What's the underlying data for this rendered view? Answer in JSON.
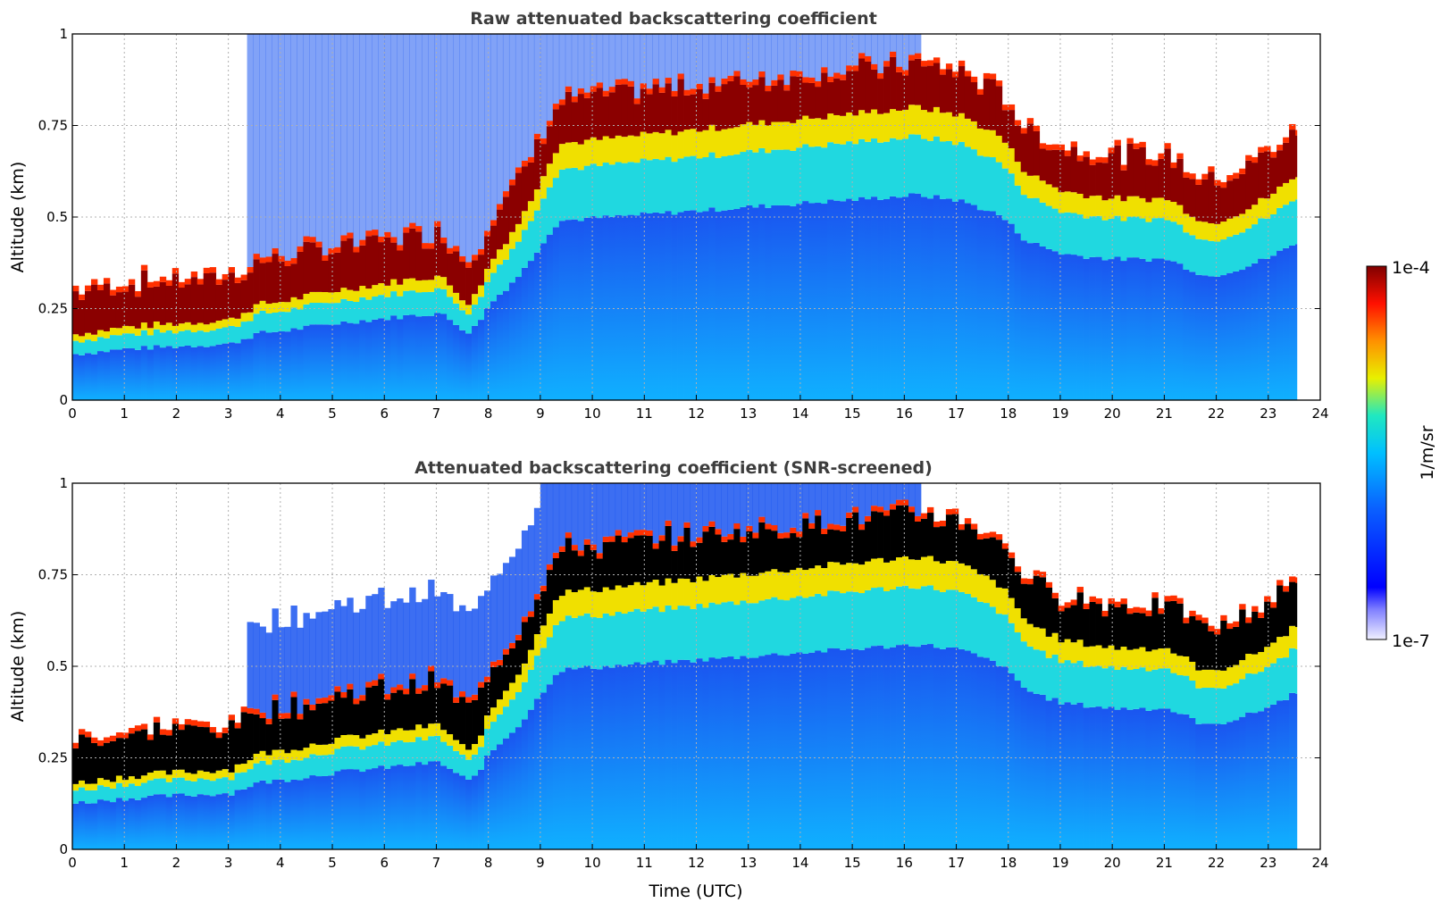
{
  "chart_data": [
    {
      "type": "heatmap",
      "title": "Raw attenuated backscattering coefficient",
      "xlabel": "",
      "ylabel": "Altitude (km)",
      "xlim": [
        0,
        24
      ],
      "ylim": [
        0,
        1
      ],
      "xticks": [
        "0",
        "1",
        "2",
        "3",
        "4",
        "5",
        "6",
        "7",
        "8",
        "9",
        "10",
        "11",
        "12",
        "13",
        "14",
        "15",
        "16",
        "17",
        "18",
        "19",
        "20",
        "21",
        "22",
        "23",
        "24"
      ],
      "yticks": [
        "0",
        "0.25",
        "0.5",
        "0.75",
        "1"
      ],
      "data_end_time": 23.55,
      "layer_base_km": [
        [
          0,
          0.18
        ],
        [
          1,
          0.2
        ],
        [
          2,
          0.21
        ],
        [
          3,
          0.22
        ],
        [
          3.5,
          0.26
        ],
        [
          4,
          0.27
        ],
        [
          5,
          0.3
        ],
        [
          6,
          0.32
        ],
        [
          7,
          0.34
        ],
        [
          7.6,
          0.26
        ],
        [
          8,
          0.38
        ],
        [
          8.6,
          0.5
        ],
        [
          9,
          0.62
        ],
        [
          9.3,
          0.7
        ],
        [
          16.2,
          0.8
        ],
        [
          17,
          0.78
        ],
        [
          17.8,
          0.72
        ],
        [
          18.3,
          0.62
        ],
        [
          19,
          0.57
        ],
        [
          20,
          0.55
        ],
        [
          21,
          0.55
        ],
        [
          21.8,
          0.48
        ],
        [
          22.5,
          0.52
        ],
        [
          23,
          0.56
        ],
        [
          23.55,
          0.62
        ]
      ],
      "layer_thickness_km": 0.12,
      "grid": true
    },
    {
      "type": "heatmap",
      "title": "Attenuated backscattering coefficient (SNR-screened)",
      "xlabel": "Time (UTC)",
      "ylabel": "Altitude (km)",
      "xlim": [
        0,
        24
      ],
      "ylim": [
        0,
        1
      ],
      "xticks": [
        "0",
        "1",
        "2",
        "3",
        "4",
        "5",
        "6",
        "7",
        "8",
        "9",
        "10",
        "11",
        "12",
        "13",
        "14",
        "15",
        "16",
        "17",
        "18",
        "19",
        "20",
        "21",
        "22",
        "23",
        "24"
      ],
      "yticks": [
        "0",
        "0.25",
        "0.5",
        "0.75",
        "1"
      ],
      "data_end_time": 23.55,
      "saturated_color": "#000000",
      "grid": true
    }
  ],
  "colorbar": {
    "label": "1/m/sr",
    "max_label": "1e-4",
    "min_label": "1e-7",
    "stops": [
      "#e8e8f8",
      "#0000ff",
      "#0a70ff",
      "#00c8ff",
      "#20e8c0",
      "#f0f000",
      "#ff8000",
      "#ff1000",
      "#800000"
    ]
  },
  "colors": {
    "background_blue": "#1a55f0",
    "light_blue": "#10b8ff",
    "dark_red": "#8b0000",
    "grid": "#b0b0b0"
  }
}
